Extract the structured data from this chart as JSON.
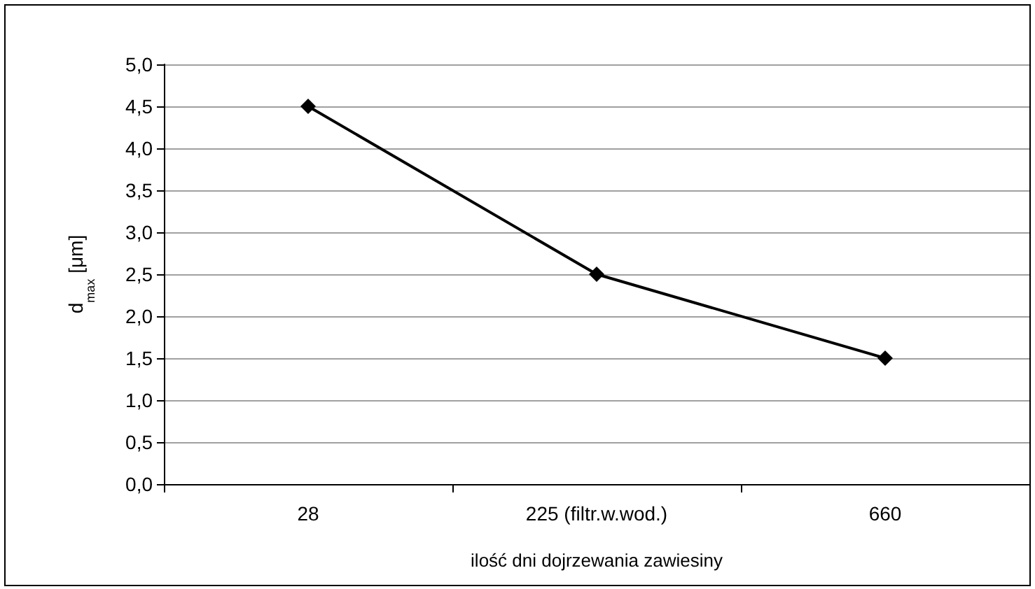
{
  "chart_data": {
    "type": "line",
    "xlabel": "ilość dni dojrzewania zawiesiny",
    "ylabel": "d$_{max}$ [μm]",
    "categories": [
      "28",
      "225 (filtr.w.wod.)",
      "660"
    ],
    "series": [
      {
        "color": "#000000",
        "values": [
          4.5,
          2.5,
          1.5
        ]
      }
    ],
    "ylim": [
      0,
      5
    ],
    "yticks": [
      {
        "value": 0,
        "label": "0,0"
      },
      {
        "value": 0.5,
        "label": "0,5"
      },
      {
        "value": 1,
        "label": "1,0"
      },
      {
        "value": 1.5,
        "label": "1,5"
      },
      {
        "value": 2,
        "label": "2,0"
      },
      {
        "value": 2.5,
        "label": "2,5"
      },
      {
        "value": 3,
        "label": "3,0"
      },
      {
        "value": 3.5,
        "label": "3,5"
      },
      {
        "value": 4,
        "label": "4,0"
      },
      {
        "value": 4.5,
        "label": "4,5"
      },
      {
        "value": 5,
        "label": "5,0"
      }
    ],
    "grid": "y",
    "marker": "diamond",
    "line_style": "solid"
  }
}
